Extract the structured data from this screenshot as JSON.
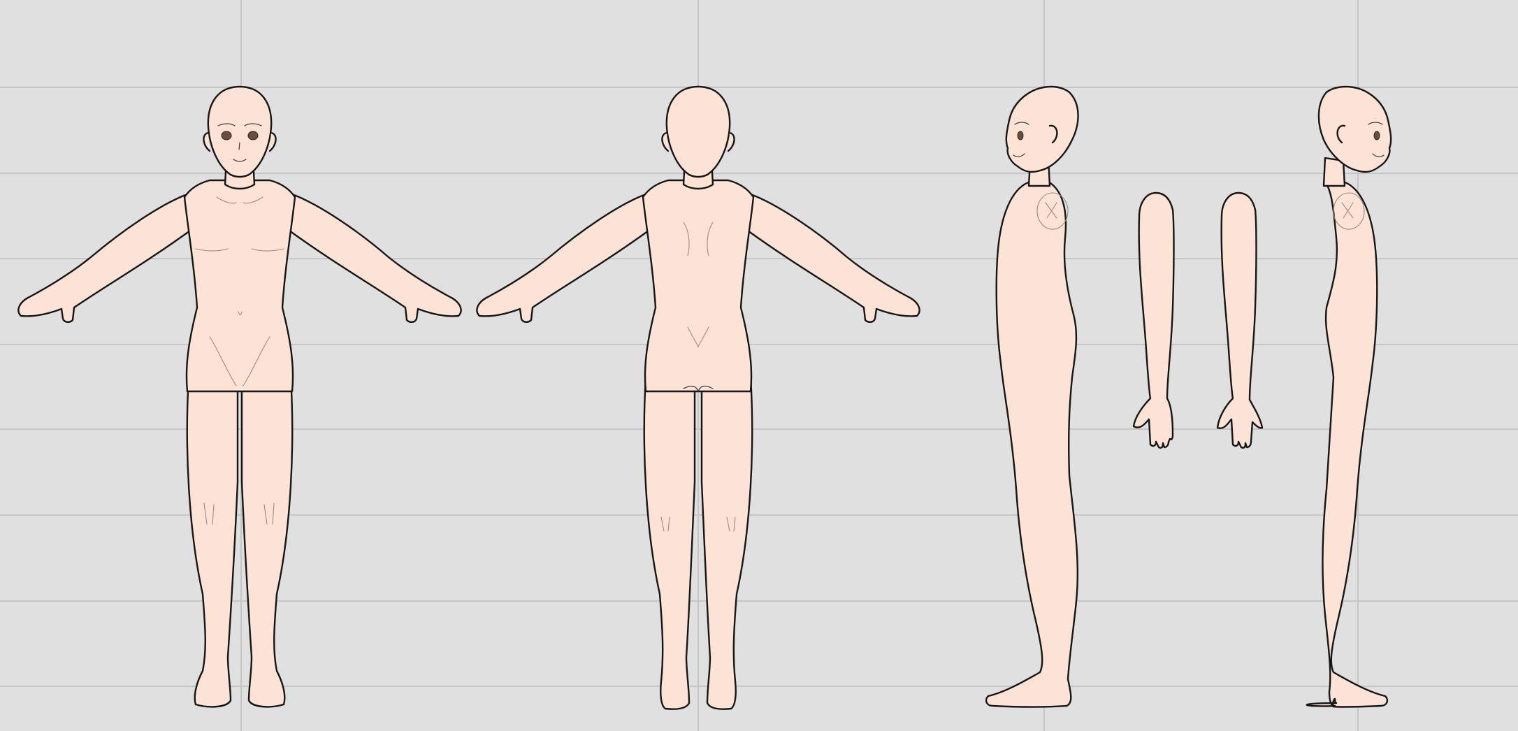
{
  "canvas": {
    "background": "#e0e0e0",
    "grid_color": "#c6c6c6",
    "grid_vertical_count": 4,
    "grid_horizontal_count": 8
  },
  "figure": {
    "skin_color": "#fde3d5",
    "outline_color": "#161616",
    "eye_color": "#6b4f3e",
    "views": [
      "front",
      "back",
      "side-left",
      "arm-outer",
      "arm-inner",
      "side-right"
    ]
  }
}
